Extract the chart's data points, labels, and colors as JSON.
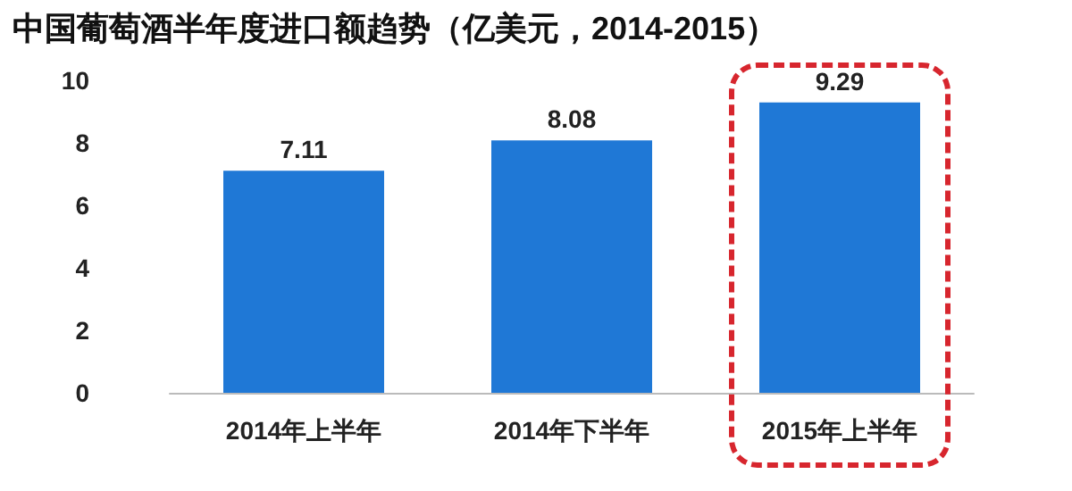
{
  "chart_data": {
    "type": "bar",
    "title": "中国葡萄酒半年度进口额趋势（亿美元，2014-2015）",
    "categories": [
      "2014年上半年",
      "2014年下半年",
      "2015年上半年"
    ],
    "values": [
      7.11,
      8.08,
      9.29
    ],
    "color": "#1f78d6",
    "ylim": [
      0,
      10
    ],
    "yticks": [
      0,
      2,
      4,
      6,
      8,
      10
    ],
    "data_labels": true
  }
}
